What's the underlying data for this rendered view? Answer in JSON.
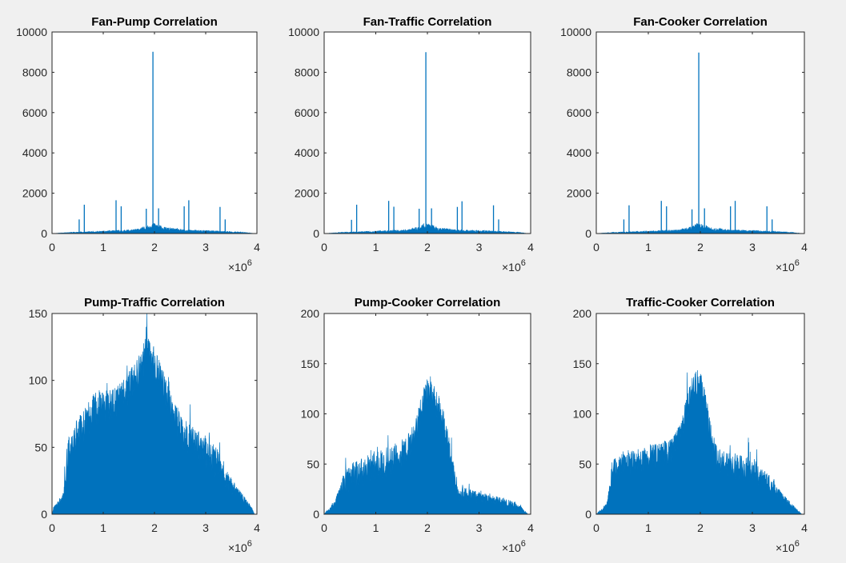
{
  "figure": {
    "background": "#f0f0f0",
    "axes_background": "#ffffff",
    "series_color": "#0072bd"
  },
  "chart_data": [
    {
      "type": "area",
      "title": "Fan-Pump Correlation",
      "xlim": [
        0,
        4
      ],
      "ylim": [
        0,
        10000
      ],
      "xticks": [
        0,
        1,
        2,
        3,
        4
      ],
      "yticks": [
        0,
        2000,
        4000,
        6000,
        8000,
        10000
      ],
      "x_multiplier_label": "×10",
      "x_multiplier_exponent": "6",
      "baseline": {
        "x": [
          0,
          0.3,
          1.0,
          1.6,
          1.85,
          1.95,
          2.05,
          2.2,
          2.6,
          3.2,
          3.8,
          3.95
        ],
        "y": [
          0,
          40,
          90,
          140,
          260,
          380,
          330,
          220,
          130,
          100,
          40,
          0
        ]
      },
      "spikes": [
        {
          "x": 0.53,
          "y": 700
        },
        {
          "x": 0.63,
          "y": 1430
        },
        {
          "x": 1.25,
          "y": 1650
        },
        {
          "x": 1.35,
          "y": 1350
        },
        {
          "x": 1.84,
          "y": 1230
        },
        {
          "x": 1.97,
          "y": 9020
        },
        {
          "x": 2.08,
          "y": 1250
        },
        {
          "x": 2.58,
          "y": 1350
        },
        {
          "x": 2.67,
          "y": 1650
        },
        {
          "x": 3.28,
          "y": 1320
        },
        {
          "x": 3.38,
          "y": 700
        }
      ]
    },
    {
      "type": "area",
      "title": "Fan-Traffic Correlation",
      "xlim": [
        0,
        4
      ],
      "ylim": [
        0,
        10000
      ],
      "xticks": [
        0,
        1,
        2,
        3,
        4
      ],
      "yticks": [
        0,
        2000,
        4000,
        6000,
        8000,
        10000
      ],
      "x_multiplier_label": "×10",
      "x_multiplier_exponent": "6",
      "baseline": {
        "x": [
          0,
          0.3,
          1.0,
          1.6,
          1.85,
          1.95,
          2.05,
          2.2,
          2.6,
          3.2,
          3.8,
          3.95
        ],
        "y": [
          0,
          40,
          90,
          140,
          260,
          380,
          330,
          220,
          130,
          100,
          40,
          0
        ]
      },
      "spikes": [
        {
          "x": 0.53,
          "y": 680
        },
        {
          "x": 0.63,
          "y": 1430
        },
        {
          "x": 1.25,
          "y": 1620
        },
        {
          "x": 1.35,
          "y": 1330
        },
        {
          "x": 1.84,
          "y": 1230
        },
        {
          "x": 1.97,
          "y": 9000
        },
        {
          "x": 2.08,
          "y": 1250
        },
        {
          "x": 2.58,
          "y": 1320
        },
        {
          "x": 2.67,
          "y": 1600
        },
        {
          "x": 3.28,
          "y": 1400
        },
        {
          "x": 3.38,
          "y": 700
        }
      ]
    },
    {
      "type": "area",
      "title": "Fan-Cooker Correlation",
      "xlim": [
        0,
        4
      ],
      "ylim": [
        0,
        10000
      ],
      "xticks": [
        0,
        1,
        2,
        3,
        4
      ],
      "yticks": [
        0,
        2000,
        4000,
        6000,
        8000,
        10000
      ],
      "x_multiplier_label": "×10",
      "x_multiplier_exponent": "6",
      "baseline": {
        "x": [
          0,
          0.3,
          1.0,
          1.6,
          1.85,
          1.95,
          2.05,
          2.2,
          2.6,
          3.2,
          3.8,
          3.95
        ],
        "y": [
          0,
          40,
          90,
          140,
          260,
          380,
          330,
          220,
          130,
          100,
          40,
          0
        ]
      },
      "spikes": [
        {
          "x": 0.53,
          "y": 700
        },
        {
          "x": 0.63,
          "y": 1400
        },
        {
          "x": 1.25,
          "y": 1620
        },
        {
          "x": 1.35,
          "y": 1350
        },
        {
          "x": 1.84,
          "y": 1200
        },
        {
          "x": 1.97,
          "y": 8980
        },
        {
          "x": 2.08,
          "y": 1250
        },
        {
          "x": 2.58,
          "y": 1350
        },
        {
          "x": 2.67,
          "y": 1620
        },
        {
          "x": 3.28,
          "y": 1350
        },
        {
          "x": 3.38,
          "y": 700
        }
      ]
    },
    {
      "type": "area",
      "title": "Pump-Traffic Correlation",
      "xlim": [
        0,
        4
      ],
      "ylim": [
        0,
        150
      ],
      "xticks": [
        0,
        1,
        2,
        3,
        4
      ],
      "yticks": [
        0,
        50,
        100,
        150
      ],
      "x_multiplier_label": "×10",
      "x_multiplier_exponent": "6",
      "envelope": {
        "x": [
          0,
          0.05,
          0.15,
          0.22,
          0.3,
          0.4,
          0.5,
          0.6,
          0.7,
          0.8,
          0.9,
          1.0,
          1.1,
          1.2,
          1.3,
          1.4,
          1.5,
          1.6,
          1.7,
          1.8,
          1.85,
          1.9,
          2.0,
          2.1,
          2.2,
          2.3,
          2.4,
          2.5,
          2.6,
          2.7,
          2.8,
          2.9,
          3.0,
          3.1,
          3.2,
          3.3,
          3.4,
          3.5,
          3.6,
          3.7,
          3.8,
          3.9,
          3.95
        ],
        "y": [
          0,
          5,
          8,
          12,
          40,
          52,
          58,
          62,
          70,
          75,
          78,
          80,
          78,
          80,
          82,
          88,
          92,
          98,
          105,
          115,
          120,
          116,
          112,
          100,
          90,
          80,
          70,
          62,
          58,
          55,
          52,
          48,
          45,
          42,
          38,
          30,
          25,
          20,
          16,
          12,
          8,
          4,
          0
        ]
      },
      "noise": 26
    },
    {
      "type": "area",
      "title": "Pump-Cooker Correlation",
      "xlim": [
        0,
        4
      ],
      "ylim": [
        0,
        200
      ],
      "xticks": [
        0,
        1,
        2,
        3,
        4
      ],
      "yticks": [
        0,
        50,
        100,
        150,
        200
      ],
      "x_multiplier_label": "×10",
      "x_multiplier_exponent": "6",
      "envelope": {
        "x": [
          0,
          0.1,
          0.2,
          0.3,
          0.4,
          0.6,
          0.8,
          1.0,
          1.2,
          1.4,
          1.6,
          1.7,
          1.8,
          1.9,
          2.0,
          2.1,
          2.2,
          2.3,
          2.4,
          2.5,
          2.55,
          2.6,
          2.8,
          3.0,
          3.2,
          3.4,
          3.6,
          3.8,
          3.95
        ],
        "y": [
          0,
          5,
          10,
          20,
          30,
          38,
          42,
          47,
          50,
          55,
          62,
          70,
          85,
          105,
          120,
          118,
          105,
          90,
          70,
          40,
          25,
          20,
          18,
          16,
          14,
          12,
          10,
          6,
          0
        ]
      },
      "noise": 30
    },
    {
      "type": "area",
      "title": "Traffic-Cooker Correlation",
      "xlim": [
        0,
        4
      ],
      "ylim": [
        0,
        200
      ],
      "xticks": [
        0,
        1,
        2,
        3,
        4
      ],
      "yticks": [
        0,
        50,
        100,
        150,
        200
      ],
      "x_multiplier_label": "×10",
      "x_multiplier_exponent": "6",
      "envelope": {
        "x": [
          0,
          0.1,
          0.2,
          0.25,
          0.3,
          0.4,
          0.6,
          0.8,
          1.0,
          1.2,
          1.4,
          1.5,
          1.6,
          1.7,
          1.8,
          1.9,
          2.0,
          2.1,
          2.2,
          2.3,
          2.4,
          2.6,
          2.8,
          3.0,
          3.2,
          3.4,
          3.6,
          3.8,
          3.95
        ],
        "y": [
          0,
          4,
          8,
          20,
          38,
          45,
          50,
          52,
          55,
          57,
          60,
          65,
          75,
          95,
          115,
          130,
          128,
          110,
          78,
          55,
          50,
          48,
          45,
          42,
          35,
          25,
          15,
          6,
          0
        ]
      },
      "noise": 26
    }
  ]
}
